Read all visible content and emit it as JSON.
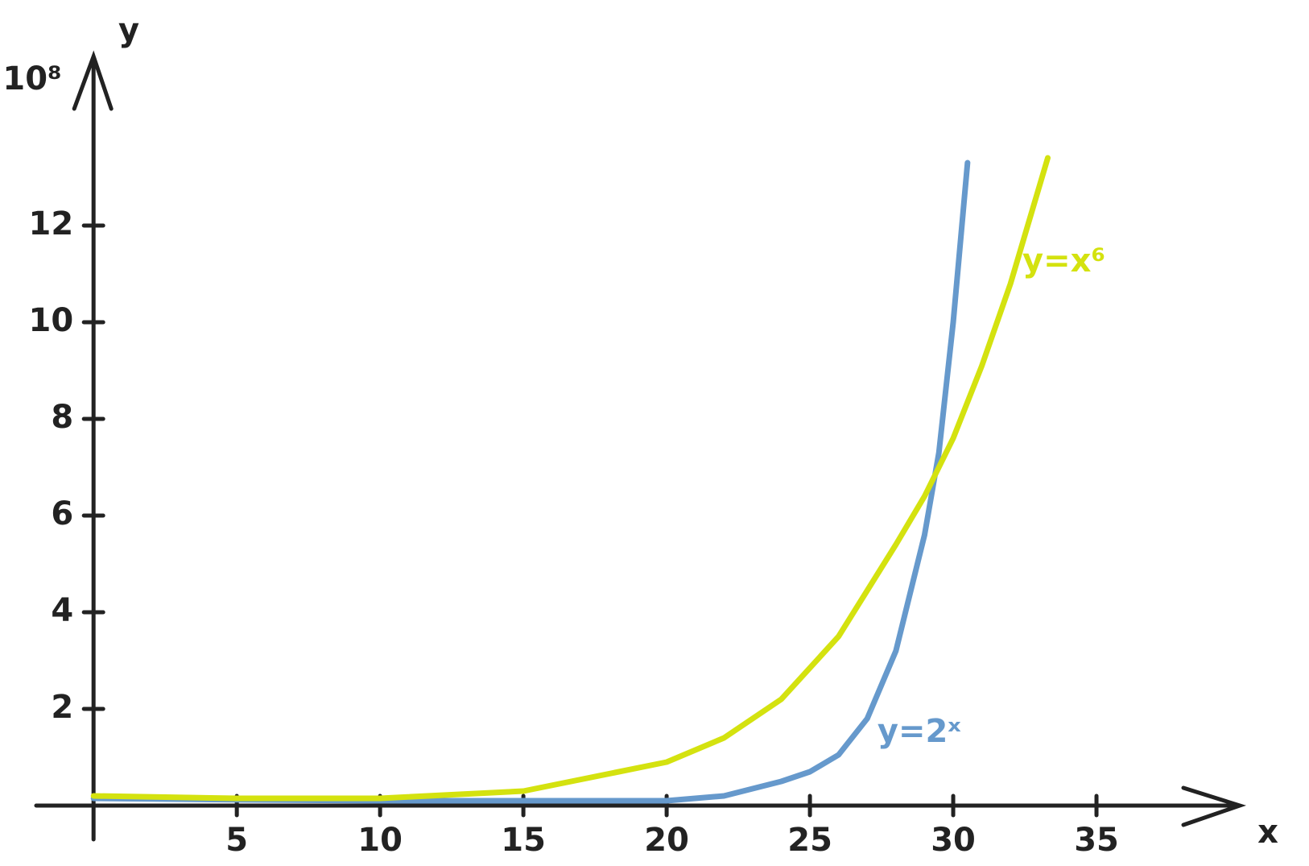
{
  "chart_data": {
    "type": "line",
    "y_unit": "10⁸",
    "y_label": "y",
    "x_label": "x",
    "xlim": [
      -2,
      40
    ],
    "ylim": [
      -0.7,
      15.5
    ],
    "xticks": [
      5,
      10,
      15,
      20,
      25,
      30,
      35
    ],
    "yticks": [
      2,
      4,
      6,
      8,
      10,
      12
    ],
    "series": [
      {
        "name": "y=2ˣ",
        "color": "#6699cc",
        "x": [
          0,
          5,
          10,
          15,
          20,
          22,
          24,
          25,
          26,
          27,
          28,
          29,
          29.5,
          30,
          30.5
        ],
        "values": [
          0.15,
          0.12,
          0.1,
          0.1,
          0.1,
          0.2,
          0.5,
          0.7,
          1.05,
          1.8,
          3.2,
          5.6,
          7.3,
          10,
          13.3
        ]
      },
      {
        "name": "y=x⁶",
        "color": "#d4e20f",
        "x": [
          0,
          5,
          10,
          15,
          20,
          22,
          24,
          26,
          28,
          29,
          30,
          31,
          32,
          33.3
        ],
        "values": [
          0.2,
          0.15,
          0.15,
          0.3,
          0.9,
          1.4,
          2.2,
          3.5,
          5.4,
          6.4,
          7.6,
          9.1,
          10.8,
          13.4
        ]
      }
    ]
  }
}
